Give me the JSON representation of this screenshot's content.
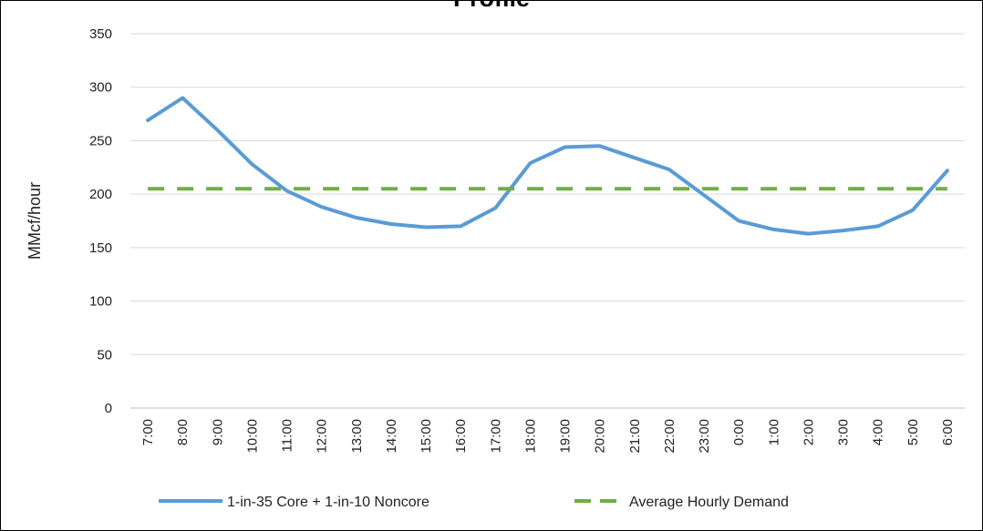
{
  "chart_data": {
    "type": "line",
    "title": "Profile",
    "ylabel": "MMcf/hour",
    "xlabel": "",
    "ylim": [
      0,
      350
    ],
    "yticks": [
      0,
      50,
      100,
      150,
      200,
      250,
      300,
      350
    ],
    "grid": true,
    "legend_position": "bottom",
    "categories": [
      "7:00",
      "8:00",
      "9:00",
      "10:00",
      "11:00",
      "12:00",
      "13:00",
      "14:00",
      "15:00",
      "16:00",
      "17:00",
      "18:00",
      "19:00",
      "20:00",
      "21:00",
      "22:00",
      "23:00",
      "0:00",
      "1:00",
      "2:00",
      "3:00",
      "4:00",
      "5:00",
      "6:00"
    ],
    "series": [
      {
        "name": "1-in-35 Core + 1-in-10 Noncore",
        "color": "#5b9bd5",
        "style": "solid",
        "values": [
          269,
          290,
          260,
          228,
          203,
          188,
          178,
          172,
          169,
          170,
          187,
          229,
          244,
          245,
          234,
          223,
          199,
          175,
          167,
          163,
          166,
          170,
          185,
          222
        ]
      },
      {
        "name": "Average Hourly Demand",
        "color": "#70ad47",
        "style": "dashed",
        "values": [
          205,
          205,
          205,
          205,
          205,
          205,
          205,
          205,
          205,
          205,
          205,
          205,
          205,
          205,
          205,
          205,
          205,
          205,
          205,
          205,
          205,
          205,
          205,
          205
        ]
      }
    ],
    "gridline_color": "#d9d9d9",
    "axis_color": "#bfbfbf"
  }
}
